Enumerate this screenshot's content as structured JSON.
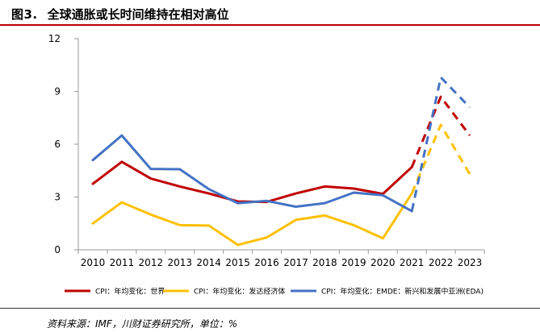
{
  "header": {
    "figure_number": "图3.",
    "title": "全球通胀或长时间维持在相对高位"
  },
  "footer": {
    "source": "资料来源：IMF，川财证券研究所，单位：%"
  },
  "chart_data": {
    "type": "line",
    "title": "全球通胀或长时间维持在相对高位",
    "xlabel": "",
    "ylabel": "",
    "x": [
      "2010",
      "2011",
      "2012",
      "2013",
      "2014",
      "2015",
      "2016",
      "2017",
      "2018",
      "2019",
      "2020",
      "2021",
      "2022",
      "2023"
    ],
    "ylim": [
      0,
      12
    ],
    "yticks": [
      0,
      3,
      6,
      9,
      12
    ],
    "forecast_from": "2021",
    "legend_position": "bottom",
    "grid": false,
    "series": [
      {
        "name": "CPI：年均变化：世界",
        "color": "#c00000",
        "values": [
          3.75,
          5.0,
          4.05,
          3.6,
          3.2,
          2.75,
          2.72,
          3.2,
          3.6,
          3.48,
          3.18,
          4.7,
          8.7,
          6.5
        ]
      },
      {
        "name": "CPI：年均变化：发达经济体",
        "color": "#ffc000",
        "values": [
          1.5,
          2.7,
          2.0,
          1.4,
          1.38,
          0.28,
          0.7,
          1.7,
          1.95,
          1.4,
          0.65,
          3.2,
          7.1,
          4.3
        ]
      },
      {
        "name": "CPI：年均变化：EMDE：新兴和发展中亚洲(EDA)",
        "color": "#4472c4",
        "values": [
          5.1,
          6.5,
          4.6,
          4.58,
          3.45,
          2.65,
          2.78,
          2.45,
          2.65,
          3.25,
          3.1,
          2.2,
          9.8,
          8.1
        ]
      }
    ]
  }
}
